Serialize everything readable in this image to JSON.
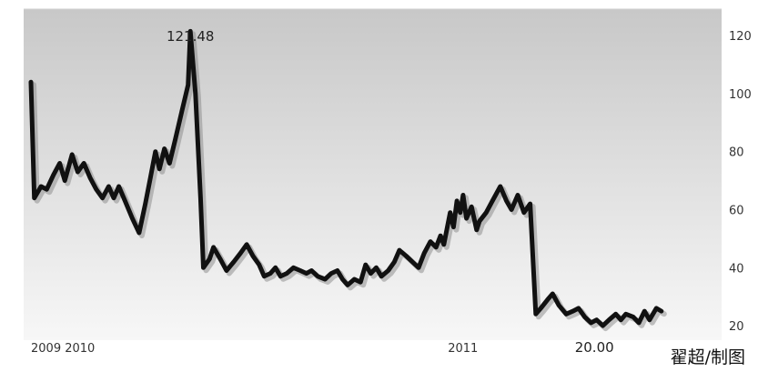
{
  "chart_data": {
    "type": "line",
    "title": "",
    "xlabel": "",
    "ylabel": "",
    "x_tick_labels": [
      {
        "label": "2009",
        "t": 0
      },
      {
        "label": "2010",
        "t": 6
      },
      {
        "label": "2011",
        "t": 74
      }
    ],
    "y_ticks": [
      20,
      40,
      60,
      80,
      100,
      120
    ],
    "y_tick_labels": [
      "20",
      "40",
      "60",
      "80",
      "100",
      "120"
    ],
    "ylim": [
      15,
      126
    ],
    "xlim": [
      0,
      120
    ],
    "grid": false,
    "annotations": [
      {
        "text": "121.48",
        "t": 28.3,
        "y": 121.48
      },
      {
        "text": "20.00",
        "t": 100,
        "y": 20.0
      }
    ],
    "colors": {
      "line": "#111111",
      "shadow": "#888888",
      "plot_bg_top": "#c8c8c8",
      "plot_bg_bottom": "#f7f7f7"
    },
    "series": [
      {
        "name": "",
        "points": [
          [
            0.0,
            104
          ],
          [
            0.6,
            64
          ],
          [
            1.8,
            68
          ],
          [
            2.8,
            67
          ],
          [
            4.0,
            72
          ],
          [
            5.1,
            76
          ],
          [
            6.0,
            70
          ],
          [
            7.3,
            79
          ],
          [
            8.3,
            73
          ],
          [
            9.4,
            76
          ],
          [
            10.5,
            71
          ],
          [
            11.6,
            67
          ],
          [
            12.7,
            64
          ],
          [
            13.8,
            68
          ],
          [
            14.7,
            64
          ],
          [
            15.6,
            68
          ],
          [
            16.7,
            63
          ],
          [
            18.0,
            57
          ],
          [
            19.2,
            52
          ],
          [
            20.3,
            62
          ],
          [
            21.2,
            71
          ],
          [
            22.1,
            80
          ],
          [
            22.8,
            74
          ],
          [
            23.7,
            81
          ],
          [
            24.6,
            76
          ],
          [
            25.6,
            84
          ],
          [
            26.8,
            94
          ],
          [
            27.9,
            103
          ],
          [
            28.3,
            121.48
          ],
          [
            29.2,
            100
          ],
          [
            30.1,
            64
          ],
          [
            30.6,
            40
          ],
          [
            31.7,
            43
          ],
          [
            32.4,
            47
          ],
          [
            33.6,
            43
          ],
          [
            34.7,
            39
          ],
          [
            36.0,
            42
          ],
          [
            37.2,
            45
          ],
          [
            38.3,
            48
          ],
          [
            39.4,
            44
          ],
          [
            40.5,
            41
          ],
          [
            41.4,
            37
          ],
          [
            42.5,
            38
          ],
          [
            43.4,
            40
          ],
          [
            44.3,
            37
          ],
          [
            45.4,
            38
          ],
          [
            46.6,
            40
          ],
          [
            47.8,
            39
          ],
          [
            48.9,
            38
          ],
          [
            49.8,
            39
          ],
          [
            50.9,
            37
          ],
          [
            52.2,
            36
          ],
          [
            53.3,
            38
          ],
          [
            54.4,
            39
          ],
          [
            55.3,
            36
          ],
          [
            56.2,
            34
          ],
          [
            57.4,
            36
          ],
          [
            58.5,
            35
          ],
          [
            59.4,
            41
          ],
          [
            60.3,
            38
          ],
          [
            61.3,
            40
          ],
          [
            62.2,
            37
          ],
          [
            63.4,
            39
          ],
          [
            64.5,
            42
          ],
          [
            65.4,
            46
          ],
          [
            66.6,
            44
          ],
          [
            67.7,
            42
          ],
          [
            68.8,
            40
          ],
          [
            69.8,
            45
          ],
          [
            70.9,
            49
          ],
          [
            71.9,
            47
          ],
          [
            72.7,
            51
          ],
          [
            73.3,
            48
          ],
          [
            74.4,
            59
          ],
          [
            75.0,
            54
          ],
          [
            75.6,
            63
          ],
          [
            76.2,
            59
          ],
          [
            76.7,
            65
          ],
          [
            77.3,
            57
          ],
          [
            78.2,
            61
          ],
          [
            79.1,
            53
          ],
          [
            79.6,
            56
          ],
          [
            80.8,
            59
          ],
          [
            81.9,
            63
          ],
          [
            83.3,
            68
          ],
          [
            84.4,
            63
          ],
          [
            85.3,
            60
          ],
          [
            86.4,
            65
          ],
          [
            87.5,
            59
          ],
          [
            88.6,
            62
          ],
          [
            89.6,
            24
          ],
          [
            90.5,
            26
          ],
          [
            91.7,
            29
          ],
          [
            92.6,
            31
          ],
          [
            93.7,
            27
          ],
          [
            95.0,
            24
          ],
          [
            96.2,
            25
          ],
          [
            97.2,
            26
          ],
          [
            98.3,
            23
          ],
          [
            99.4,
            21
          ],
          [
            100.4,
            22
          ],
          [
            101.5,
            20
          ],
          [
            102.6,
            22
          ],
          [
            103.8,
            24
          ],
          [
            104.7,
            22
          ],
          [
            105.6,
            24
          ],
          [
            106.9,
            23
          ],
          [
            107.9,
            21
          ],
          [
            108.9,
            25
          ],
          [
            109.8,
            22
          ],
          [
            111.0,
            26
          ],
          [
            111.9,
            25
          ]
        ]
      }
    ]
  },
  "credit": "翟超/制图"
}
